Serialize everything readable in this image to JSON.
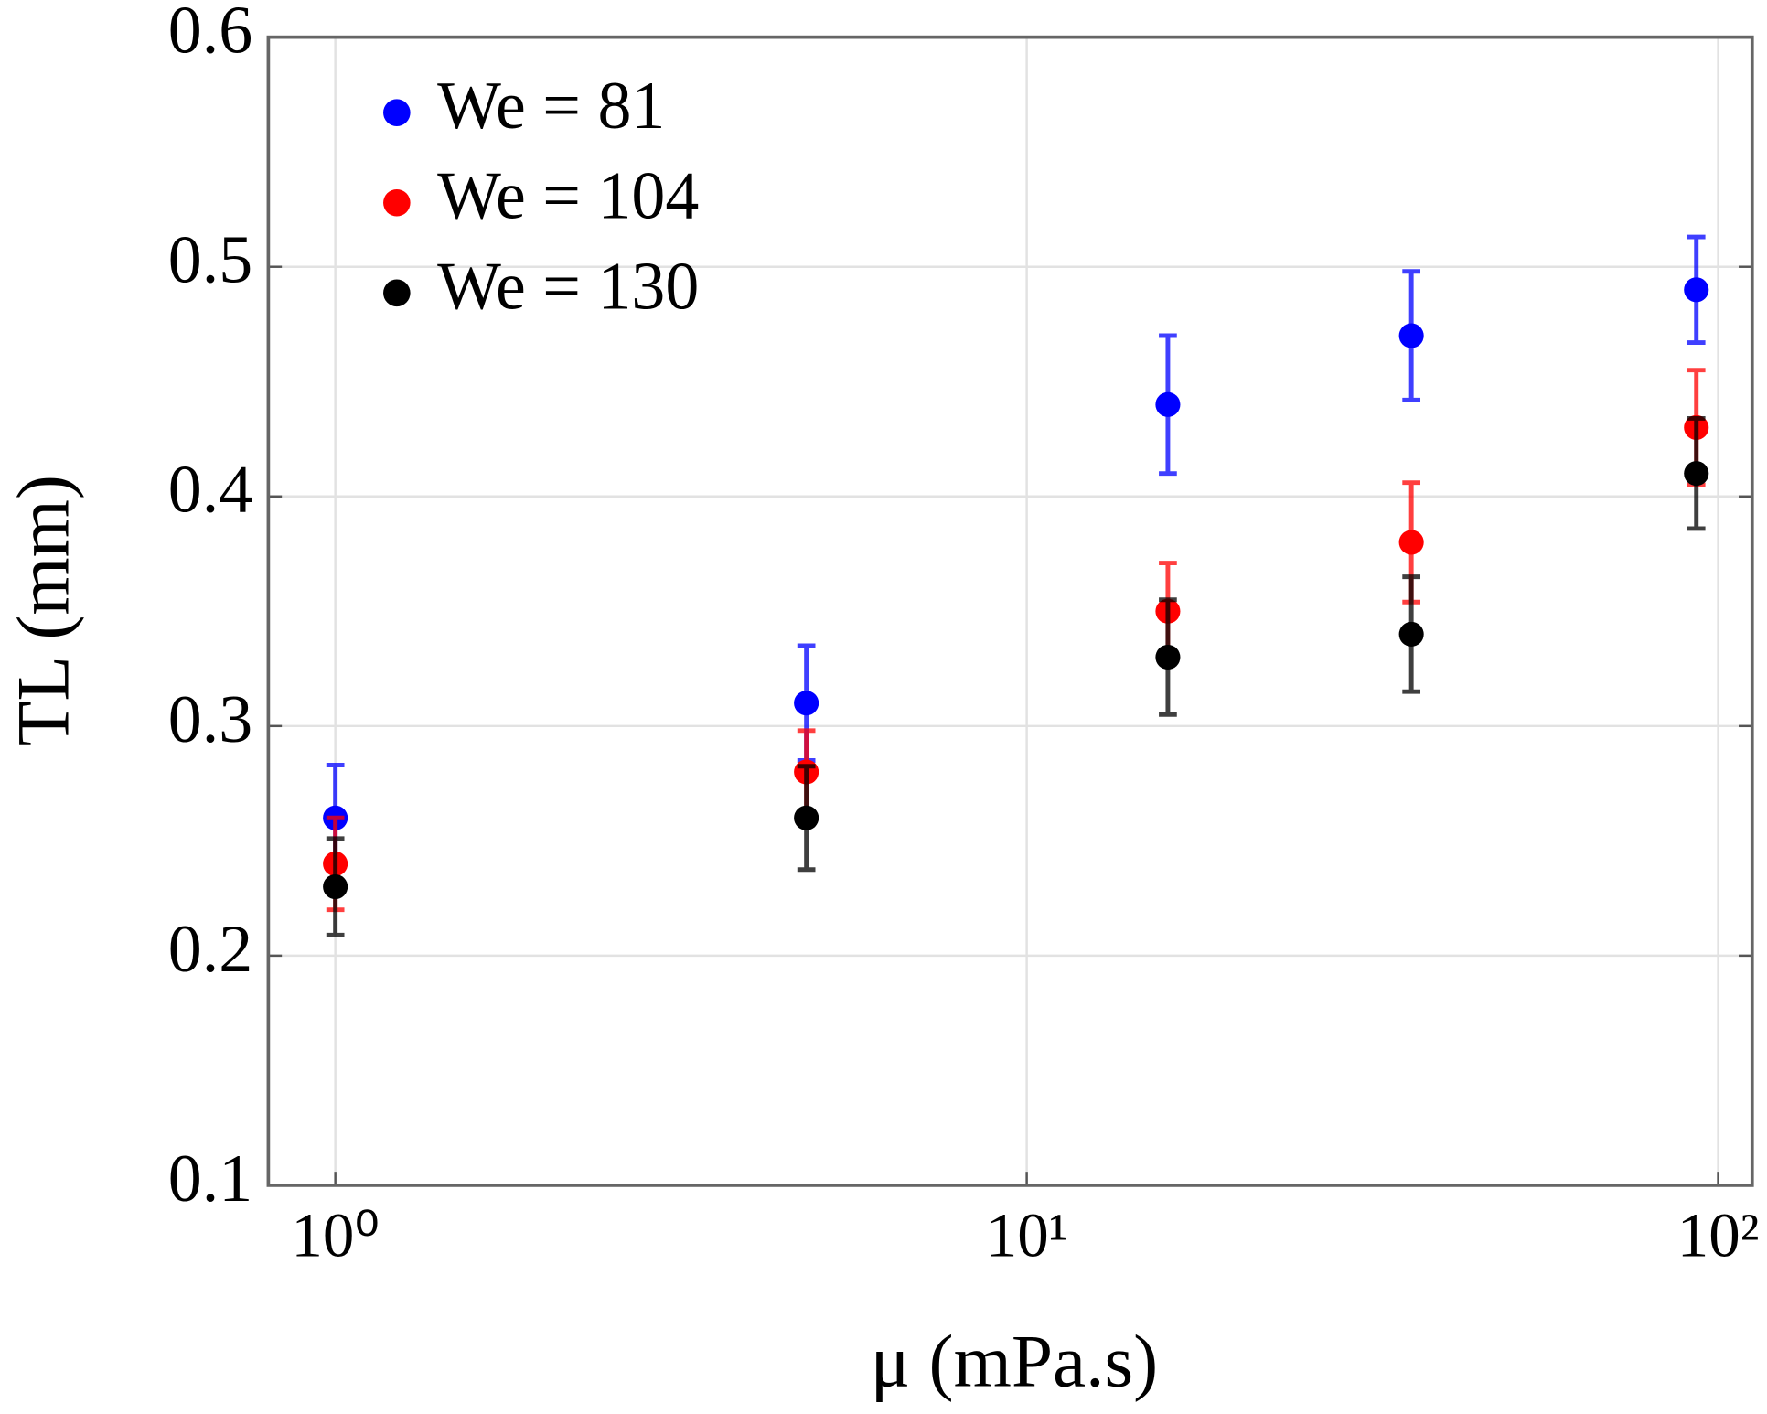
{
  "chart_data": {
    "type": "scatter",
    "x_label": "μ (mPa.s)",
    "y_label": "TL (mm)",
    "x_scale": "log",
    "xlim": [
      0.8,
      112
    ],
    "ylim": [
      0.1,
      0.6
    ],
    "xticks": [
      {
        "value": 1,
        "label": "10⁰"
      },
      {
        "value": 10,
        "label": "10¹"
      },
      {
        "value": 100,
        "label": "10²"
      }
    ],
    "yticks": [
      0.1,
      0.2,
      0.3,
      0.4,
      0.5,
      0.6
    ],
    "grid": true,
    "legend": "upper left",
    "x": [
      1,
      4.8,
      16,
      36,
      93
    ],
    "series": [
      {
        "name": "We = 81",
        "color": "#0000ff",
        "values": [
          0.26,
          0.31,
          0.44,
          0.47,
          0.49
        ],
        "errors": [
          0.023,
          0.025,
          0.03,
          0.028,
          0.023
        ]
      },
      {
        "name": "We = 104",
        "color": "#ff0000",
        "values": [
          0.24,
          0.28,
          0.35,
          0.38,
          0.43
        ],
        "errors": [
          0.02,
          0.018,
          0.021,
          0.026,
          0.025
        ]
      },
      {
        "name": "We = 130",
        "color": "#000000",
        "values": [
          0.23,
          0.26,
          0.33,
          0.34,
          0.41
        ],
        "errors": [
          0.021,
          0.0225,
          0.025,
          0.025,
          0.024
        ]
      }
    ]
  }
}
